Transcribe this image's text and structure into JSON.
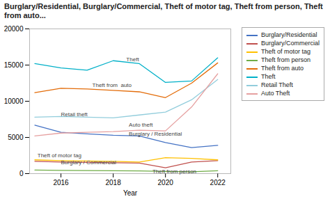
{
  "chart_data": {
    "type": "line",
    "title": "Burglary/Residential, Burglary/Commercial, Theft of motor tag, Theft from person, Theft from auto...",
    "xlabel": "Year",
    "x": [
      2015,
      2016,
      2017,
      2018,
      2019,
      2020,
      2021,
      2022
    ],
    "series": [
      {
        "name": "Burglary/Residential",
        "color": "#4472C4",
        "values": [
          6700,
          5700,
          5500,
          5300,
          5200,
          4300,
          3600,
          3900
        ]
      },
      {
        "name": "Burglary/Commercial",
        "color": "#C0504D",
        "values": [
          1700,
          1600,
          1550,
          1500,
          1450,
          800,
          1600,
          1800
        ]
      },
      {
        "name": "Theft of motor tag",
        "color": "#FFC000",
        "values": [
          1900,
          1800,
          1750,
          1700,
          1600,
          2200,
          2100,
          1900
        ]
      },
      {
        "name": "Theft from person",
        "color": "#70AD47",
        "values": [
          500,
          450,
          420,
          400,
          380,
          300,
          250,
          400
        ]
      },
      {
        "name": "Theft from auto",
        "color": "#E36C09",
        "values": [
          11200,
          11800,
          11700,
          11500,
          11300,
          10500,
          12500,
          15300
        ]
      },
      {
        "name": "Theft",
        "color": "#00B0C8",
        "values": [
          15200,
          14600,
          14300,
          15600,
          15200,
          12600,
          12800,
          16000
        ]
      },
      {
        "name": "Retail Theft",
        "color": "#92CDDC",
        "values": [
          7800,
          7900,
          7800,
          7700,
          8100,
          8500,
          10200,
          13000
        ]
      },
      {
        "name": "Auto Theft",
        "color": "#E6A0A0",
        "values": [
          5200,
          5600,
          5700,
          5800,
          6000,
          5900,
          9200,
          13800
        ]
      }
    ],
    "annotations": [
      {
        "text": "Burglary / Residential",
        "x": 2018.6,
        "y": 5500
      },
      {
        "text": "Burglary / Commercial",
        "x": 2016.0,
        "y": 1750
      },
      {
        "text": "Theft of motor tag",
        "x": 2015.1,
        "y": 2350
      },
      {
        "text": "Theft from person",
        "x": 2019.5,
        "y": 250
      },
      {
        "text": "Theft from  auto",
        "x": 2017.2,
        "y": 12200
      },
      {
        "text": "Theft",
        "x": 2018.5,
        "y": 15800
      },
      {
        "text": "Retail theft",
        "x": 2016.0,
        "y": 8200
      },
      {
        "text": "Auto theft",
        "x": 2018.6,
        "y": 6700
      }
    ],
    "xlim": [
      2014.8,
      2022.5
    ],
    "xticks": [
      2016,
      2018,
      2020,
      2022
    ],
    "ylim": [
      0,
      20000
    ],
    "yticks": [
      0,
      5000,
      10000,
      15000,
      20000
    ],
    "grid": false,
    "legend": "right"
  }
}
